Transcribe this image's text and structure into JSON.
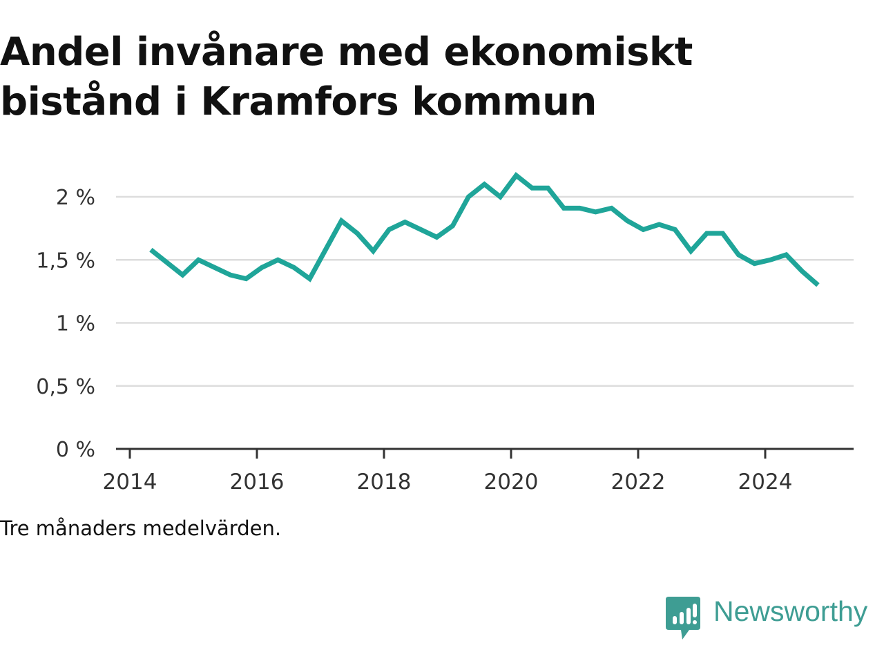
{
  "title": "Andel invånare med ekonomiskt bistånd i Kramfors kommun",
  "note": "Tre månaders medelvärden.",
  "brand": {
    "name": "Newsworthy",
    "color": "#3e9d93",
    "icon": "newsworthy-logo-icon"
  },
  "colors": {
    "line": "#1fa599",
    "grid": "#dddddd",
    "axis": "#333333"
  },
  "chart_data": {
    "type": "line",
    "title": "",
    "xlabel": "",
    "ylabel": "",
    "ylim": [
      0,
      2.25
    ],
    "xlim": [
      2013.7,
      2025.5
    ],
    "grid": true,
    "yticks": [
      {
        "value": 0,
        "label": "0 %"
      },
      {
        "value": 0.5,
        "label": "0,5 %"
      },
      {
        "value": 1,
        "label": "1 %"
      },
      {
        "value": 1.5,
        "label": "1,5 %"
      },
      {
        "value": 2,
        "label": "2 %"
      }
    ],
    "xticks": [
      {
        "value": 2014,
        "label": "2014"
      },
      {
        "value": 2016,
        "label": "2016"
      },
      {
        "value": 2018,
        "label": "2018"
      },
      {
        "value": 2020,
        "label": "2020"
      },
      {
        "value": 2022,
        "label": "2022"
      },
      {
        "value": 2024,
        "label": "2024"
      }
    ],
    "series": [
      {
        "points": [
          [
            2014.33,
            1.58
          ],
          [
            2014.58,
            1.48
          ],
          [
            2014.83,
            1.38
          ],
          [
            2015.08,
            1.5
          ],
          [
            2015.33,
            1.44
          ],
          [
            2015.58,
            1.38
          ],
          [
            2015.83,
            1.35
          ],
          [
            2016.08,
            1.44
          ],
          [
            2016.33,
            1.5
          ],
          [
            2016.58,
            1.44
          ],
          [
            2016.83,
            1.35
          ],
          [
            2017.08,
            1.58
          ],
          [
            2017.33,
            1.81
          ],
          [
            2017.58,
            1.71
          ],
          [
            2017.83,
            1.57
          ],
          [
            2018.08,
            1.74
          ],
          [
            2018.33,
            1.8
          ],
          [
            2018.58,
            1.74
          ],
          [
            2018.83,
            1.68
          ],
          [
            2019.08,
            1.77
          ],
          [
            2019.33,
            2.0
          ],
          [
            2019.58,
            2.1
          ],
          [
            2019.83,
            2.0
          ],
          [
            2020.08,
            2.17
          ],
          [
            2020.33,
            2.07
          ],
          [
            2020.58,
            2.07
          ],
          [
            2020.83,
            1.91
          ],
          [
            2021.08,
            1.91
          ],
          [
            2021.33,
            1.88
          ],
          [
            2021.58,
            1.91
          ],
          [
            2021.83,
            1.81
          ],
          [
            2022.08,
            1.74
          ],
          [
            2022.33,
            1.78
          ],
          [
            2022.58,
            1.74
          ],
          [
            2022.83,
            1.57
          ],
          [
            2023.08,
            1.71
          ],
          [
            2023.33,
            1.71
          ],
          [
            2023.58,
            1.54
          ],
          [
            2023.83,
            1.47
          ],
          [
            2024.08,
            1.5
          ],
          [
            2024.33,
            1.54
          ],
          [
            2024.58,
            1.41
          ],
          [
            2024.83,
            1.3
          ]
        ]
      }
    ]
  }
}
